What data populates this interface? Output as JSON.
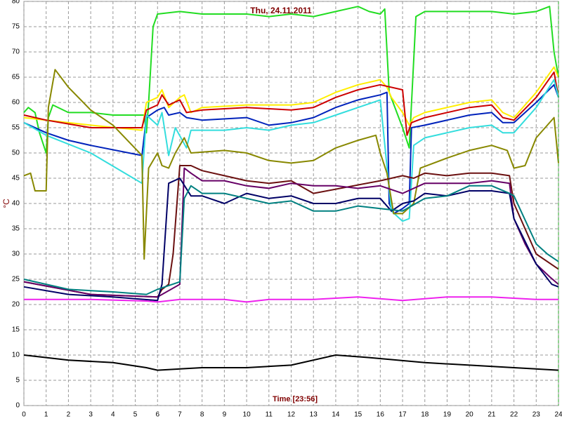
{
  "chart_data": {
    "type": "line",
    "title": "Thu, 24.11.2011",
    "x_label": "Time [23:56]",
    "y_label": "°C",
    "xlim": [
      0,
      24
    ],
    "xticks": [
      0,
      1,
      2,
      3,
      4,
      5,
      6,
      7,
      8,
      9,
      10,
      11,
      12,
      13,
      14,
      15,
      16,
      17,
      18,
      19,
      20,
      21,
      22,
      23,
      24
    ],
    "ylim": [
      0,
      80
    ],
    "yticks": [
      0,
      5,
      10,
      15,
      20,
      25,
      30,
      35,
      40,
      45,
      50,
      55,
      60,
      65,
      70,
      75,
      80
    ],
    "grid": true,
    "series": [
      {
        "color": "#22dd22",
        "x": [
          0,
          0.2,
          0.5,
          0.7,
          1,
          1.1,
          1.3,
          2,
          3,
          4,
          5.4,
          5.5,
          5.6,
          5.8,
          6,
          7,
          8,
          9,
          10,
          11,
          12,
          13,
          14,
          15,
          15.5,
          16,
          16.2,
          16.4,
          17,
          17.3,
          17.6,
          18,
          20,
          21,
          22,
          23,
          23.6,
          23.8,
          24
        ],
        "values": [
          58,
          59,
          58,
          54,
          50,
          57,
          59.5,
          58,
          58,
          57.5,
          57.5,
          54,
          60,
          75,
          77.5,
          78,
          77.5,
          77.5,
          77.5,
          77,
          77.5,
          77,
          78,
          79,
          78,
          77.5,
          78.5,
          62,
          55,
          51,
          77,
          78,
          78,
          78,
          77.5,
          78,
          79,
          70,
          65
        ]
      },
      {
        "color": "#ffee00",
        "x": [
          0,
          1,
          3,
          5.3,
          5.5,
          6,
          6.2,
          6.5,
          7,
          7.2,
          7.5,
          8,
          10,
          12,
          13,
          14,
          15,
          16,
          16.3,
          16.5,
          17,
          17.3,
          17.5,
          18,
          19,
          20,
          21,
          21.5,
          22,
          23,
          23.8,
          24
        ],
        "values": [
          57,
          56.5,
          55.5,
          54.5,
          60,
          61,
          62.5,
          59,
          61,
          61.5,
          58,
          59,
          59.5,
          59.5,
          60,
          62,
          63.5,
          64.5,
          63,
          61,
          58,
          55.5,
          57,
          58,
          59,
          60,
          60.5,
          58,
          57,
          62,
          67,
          65
        ]
      },
      {
        "color": "#cc0000",
        "x": [
          0,
          1,
          3,
          5.3,
          5.5,
          6,
          6.2,
          6.5,
          7,
          7.3,
          8,
          10,
          12,
          13,
          14,
          15,
          16,
          17,
          17.2,
          17.4,
          18,
          20,
          21,
          21.5,
          22,
          23,
          23.8,
          24
        ],
        "values": [
          57.5,
          56.5,
          55,
          55,
          58.5,
          59.5,
          61.5,
          59.5,
          60.5,
          58,
          58.5,
          59,
          58.5,
          59,
          61,
          62.5,
          63.5,
          62.5,
          53.5,
          56,
          57,
          59,
          59.5,
          57,
          56.5,
          61,
          66,
          61
        ]
      },
      {
        "color": "#0022bb",
        "x": [
          0,
          1,
          2,
          3,
          5.3,
          5.5,
          6,
          6.3,
          6.5,
          7,
          7.3,
          8,
          10,
          11,
          12,
          13,
          14,
          15,
          16,
          16.3,
          16.4,
          16.6,
          17,
          17.3,
          17.4,
          18,
          19,
          20,
          21,
          21.5,
          22,
          23,
          23.8,
          24
        ],
        "values": [
          56,
          54,
          52.5,
          51.5,
          49.5,
          57,
          58.5,
          59,
          57.5,
          58,
          57,
          56.5,
          57,
          55.5,
          56,
          57,
          59,
          60.5,
          61.5,
          62,
          40,
          38,
          39,
          40,
          55,
          55.5,
          56.5,
          57.5,
          58,
          56,
          56,
          60,
          63.5,
          61
        ]
      },
      {
        "color": "#33dddd",
        "x": [
          0,
          1,
          3,
          5.3,
          5.5,
          6,
          6.2,
          6.5,
          6.8,
          7.3,
          7.5,
          9,
          10,
          11,
          12,
          13,
          14,
          15,
          16,
          16.5,
          17,
          17.3,
          17.5,
          18,
          19,
          20,
          21,
          21.5,
          22,
          23,
          23.8,
          24
        ],
        "values": [
          56,
          53.5,
          50,
          44,
          57.5,
          55.5,
          58,
          49.5,
          55,
          51,
          54.5,
          54.5,
          55,
          54.5,
          55.5,
          56,
          57.5,
          59,
          60.5,
          38.5,
          36.5,
          37,
          51.5,
          53,
          54,
          55,
          55.5,
          54,
          54,
          59,
          64.5,
          61
        ]
      },
      {
        "color": "#888800",
        "x": [
          0,
          0.3,
          0.5,
          1,
          1.1,
          1.4,
          2,
          3,
          4,
          5.3,
          5.4,
          5.6,
          6,
          6.2,
          6.5,
          6.8,
          7.2,
          7.5,
          9,
          10,
          11,
          12,
          13,
          14,
          15,
          15.8,
          16,
          16.3,
          16.6,
          17,
          17.5,
          17.8,
          19,
          20,
          21,
          21.7,
          22,
          22.5,
          23,
          23.8,
          24
        ],
        "values": [
          45.5,
          46,
          42.5,
          42.5,
          59,
          66.5,
          63,
          58.5,
          55.5,
          49.5,
          29,
          47,
          50,
          47.5,
          47,
          50,
          53,
          50,
          50.5,
          50,
          48.5,
          48,
          48.5,
          51,
          52.5,
          53.5,
          50,
          46,
          38,
          38,
          40,
          47,
          49,
          50.5,
          51.5,
          50.5,
          47,
          47.5,
          53,
          57,
          48
        ]
      },
      {
        "color": "#6b1010",
        "x": [
          0,
          3,
          6,
          6.2,
          6.5,
          6.7,
          7,
          7.5,
          8,
          9,
          10,
          11,
          12,
          13,
          16,
          17,
          17.5,
          18,
          19,
          20,
          21,
          21.8,
          22,
          23,
          24
        ],
        "values": [
          24.5,
          22,
          21.5,
          23,
          24,
          30,
          47.5,
          47.5,
          46.5,
          45.5,
          44.5,
          44,
          44.5,
          42,
          44.5,
          45.5,
          45,
          46,
          45.5,
          46,
          46,
          45.5,
          40,
          30,
          27
        ]
      },
      {
        "color": "#660066",
        "x": [
          0,
          3,
          6,
          7,
          7.2,
          7.5,
          8,
          9,
          10,
          11,
          12,
          13,
          14,
          15,
          16,
          17,
          18,
          19,
          20,
          21,
          21.8,
          22,
          22.5,
          23,
          23.6,
          24
        ],
        "values": [
          24.5,
          22,
          21.5,
          24,
          47,
          46,
          44.5,
          44.5,
          43.5,
          43,
          44,
          43.5,
          43.5,
          43,
          43.5,
          42,
          44,
          44,
          44,
          44.5,
          44,
          37,
          32,
          28,
          25.5,
          24
        ]
      },
      {
        "color": "#000066",
        "x": [
          0,
          2,
          4,
          6,
          6.2,
          6.5,
          7,
          7.5,
          8,
          9,
          10,
          11,
          12,
          13,
          14,
          15,
          16,
          16.5,
          17,
          17.5,
          18,
          19,
          20,
          21,
          21.8,
          22,
          23,
          23.7,
          24
        ],
        "values": [
          23.5,
          22,
          21.5,
          20.8,
          24,
          44,
          45,
          41.5,
          41.5,
          40,
          42,
          41,
          41.5,
          40,
          40,
          41,
          41,
          38.5,
          40,
          40.5,
          42,
          41.5,
          42.5,
          42.5,
          42,
          37,
          28,
          24,
          23.5
        ]
      },
      {
        "color": "#008080",
        "x": [
          0,
          2,
          4,
          5.5,
          6,
          7,
          7.2,
          7.5,
          8,
          9,
          10,
          11,
          12,
          13,
          14,
          15,
          16,
          17,
          18,
          19,
          20,
          21,
          21.8,
          22,
          23,
          23.5,
          24
        ],
        "values": [
          25,
          23,
          22.5,
          22,
          23,
          24.5,
          41,
          43.5,
          42,
          42,
          41,
          40,
          40.5,
          38.5,
          38.5,
          39.5,
          39,
          38.5,
          41,
          41.5,
          43.5,
          43.5,
          42,
          41.5,
          32,
          30,
          28.5
        ]
      },
      {
        "color": "#ee22ee",
        "x": [
          0,
          3,
          5.5,
          6,
          7,
          9,
          10,
          11,
          13,
          15,
          17,
          19,
          21,
          23,
          24
        ],
        "values": [
          21,
          21,
          20.7,
          20.5,
          21,
          21,
          20.5,
          21,
          21,
          21.5,
          20.8,
          21.5,
          21.5,
          21,
          21
        ]
      },
      {
        "color": "#000000",
        "x": [
          0,
          2,
          4,
          5.5,
          6,
          8,
          10,
          12,
          14,
          15.5,
          18,
          20,
          22,
          24
        ],
        "values": [
          10,
          9,
          8.5,
          7.5,
          7,
          7.5,
          7.5,
          8,
          10,
          9.5,
          8.5,
          8,
          7.5,
          7
        ]
      }
    ]
  }
}
